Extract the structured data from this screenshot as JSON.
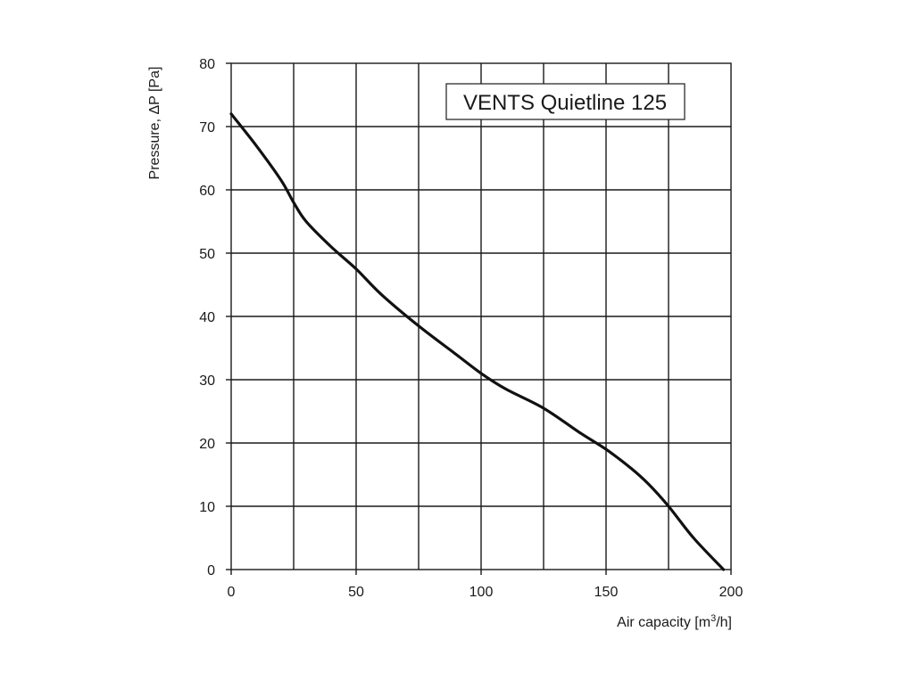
{
  "chart_data": {
    "type": "line",
    "title": "VENTS Quietline 125",
    "xlabel_prefix": "Air capacity [m",
    "xlabel_sup": "3",
    "xlabel_suffix": "/h]",
    "ylabel": "Pressure, ΔP [Pa]",
    "xlim": [
      0,
      200
    ],
    "ylim": [
      0,
      80
    ],
    "xticks": [
      0,
      50,
      100,
      150,
      200
    ],
    "yticks": [
      0,
      10,
      20,
      30,
      40,
      50,
      60,
      70,
      80
    ],
    "grid": true,
    "series": [
      {
        "x": [
          0,
          10,
          20,
          25,
          30,
          40,
          50,
          60,
          75,
          90,
          100,
          110,
          125,
          140,
          150,
          160,
          167,
          175,
          185,
          197
        ],
        "y": [
          72,
          67,
          61.5,
          58,
          55,
          51,
          47.5,
          43.5,
          38.5,
          34,
          31,
          28.5,
          25.5,
          21.5,
          19,
          16,
          13.5,
          10,
          5,
          0
        ]
      }
    ]
  }
}
